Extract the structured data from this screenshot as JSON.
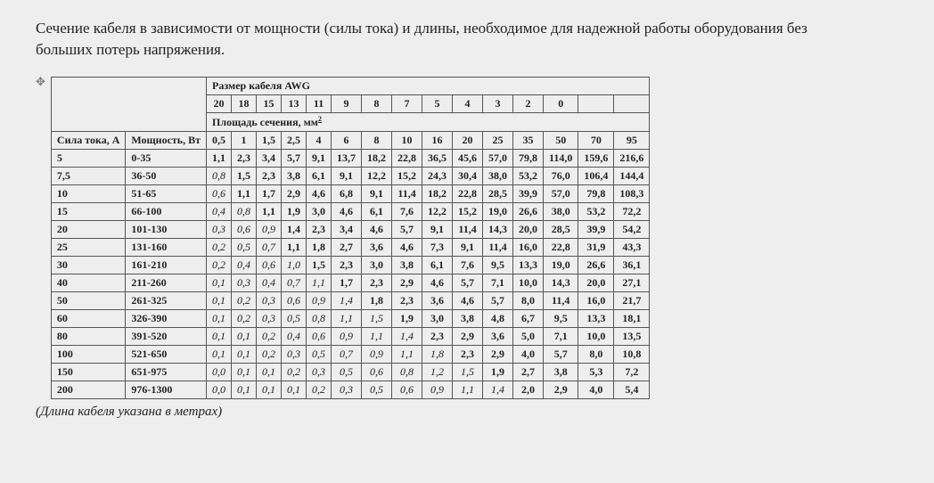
{
  "title": "Сечение кабеля в зависимости от мощности (силы тока) и длины, необходимое для надежной работы оборудования без больших потерь напряжения.",
  "table": {
    "header_awg_label": "Размер кабеля  AWG",
    "header_mm2_label": "Площадь сечения, мм",
    "header_mm2_sup": "2",
    "corner_current": "Сила тока, А",
    "corner_power": "Мощность, Вт",
    "awg_values": [
      "20",
      "18",
      "15",
      "13",
      "11",
      "9",
      "8",
      "7",
      "5",
      "4",
      "3",
      "2",
      "0",
      "",
      ""
    ],
    "mm2_values": [
      "0,5",
      "1",
      "1,5",
      "2,5",
      "4",
      "6",
      "8",
      "10",
      "16",
      "20",
      "25",
      "35",
      "50",
      "70",
      "95"
    ],
    "rows": [
      {
        "current": "5",
        "power": "0-35",
        "cells": [
          {
            "v": "1,1",
            "s": "b"
          },
          {
            "v": "2,3",
            "s": "b"
          },
          {
            "v": "3,4",
            "s": "b"
          },
          {
            "v": "5,7",
            "s": "b"
          },
          {
            "v": "9,1",
            "s": "b"
          },
          {
            "v": "13,7",
            "s": "b"
          },
          {
            "v": "18,2",
            "s": "b"
          },
          {
            "v": "22,8",
            "s": "b"
          },
          {
            "v": "36,5",
            "s": "b"
          },
          {
            "v": "45,6",
            "s": "b"
          },
          {
            "v": "57,0",
            "s": "b"
          },
          {
            "v": "79,8",
            "s": "b"
          },
          {
            "v": "114,0",
            "s": "b"
          },
          {
            "v": "159,6",
            "s": "b"
          },
          {
            "v": "216,6",
            "s": "b"
          }
        ]
      },
      {
        "current": "7,5",
        "power": "36-50",
        "cells": [
          {
            "v": "0,8",
            "s": "i"
          },
          {
            "v": "1,5",
            "s": "b"
          },
          {
            "v": "2,3",
            "s": "b"
          },
          {
            "v": "3,8",
            "s": "b"
          },
          {
            "v": "6,1",
            "s": "b"
          },
          {
            "v": "9,1",
            "s": "b"
          },
          {
            "v": "12,2",
            "s": "b"
          },
          {
            "v": "15,2",
            "s": "b"
          },
          {
            "v": "24,3",
            "s": "b"
          },
          {
            "v": "30,4",
            "s": "b"
          },
          {
            "v": "38,0",
            "s": "b"
          },
          {
            "v": "53,2",
            "s": "b"
          },
          {
            "v": "76,0",
            "s": "b"
          },
          {
            "v": "106,4",
            "s": "b"
          },
          {
            "v": "144,4",
            "s": "b"
          }
        ]
      },
      {
        "current": "10",
        "power": "51-65",
        "cells": [
          {
            "v": "0,6",
            "s": "i"
          },
          {
            "v": "1,1",
            "s": "b"
          },
          {
            "v": "1,7",
            "s": "b"
          },
          {
            "v": "2,9",
            "s": "b"
          },
          {
            "v": "4,6",
            "s": "b"
          },
          {
            "v": "6,8",
            "s": "b"
          },
          {
            "v": "9,1",
            "s": "b"
          },
          {
            "v": "11,4",
            "s": "b"
          },
          {
            "v": "18,2",
            "s": "b"
          },
          {
            "v": "22,8",
            "s": "b"
          },
          {
            "v": "28,5",
            "s": "b"
          },
          {
            "v": "39,9",
            "s": "b"
          },
          {
            "v": "57,0",
            "s": "b"
          },
          {
            "v": "79,8",
            "s": "b"
          },
          {
            "v": "108,3",
            "s": "b"
          }
        ]
      },
      {
        "current": "15",
        "power": "66-100",
        "cells": [
          {
            "v": "0,4",
            "s": "i"
          },
          {
            "v": "0,8",
            "s": "i"
          },
          {
            "v": "1,1",
            "s": "b"
          },
          {
            "v": "1,9",
            "s": "b"
          },
          {
            "v": "3,0",
            "s": "b"
          },
          {
            "v": "4,6",
            "s": "b"
          },
          {
            "v": "6,1",
            "s": "b"
          },
          {
            "v": "7,6",
            "s": "b"
          },
          {
            "v": "12,2",
            "s": "b"
          },
          {
            "v": "15,2",
            "s": "b"
          },
          {
            "v": "19,0",
            "s": "b"
          },
          {
            "v": "26,6",
            "s": "b"
          },
          {
            "v": "38,0",
            "s": "b"
          },
          {
            "v": "53,2",
            "s": "b"
          },
          {
            "v": "72,2",
            "s": "b"
          }
        ]
      },
      {
        "current": "20",
        "power": "101-130",
        "cells": [
          {
            "v": "0,3",
            "s": "i"
          },
          {
            "v": "0,6",
            "s": "i"
          },
          {
            "v": "0,9",
            "s": "i"
          },
          {
            "v": "1,4",
            "s": "b"
          },
          {
            "v": "2,3",
            "s": "b"
          },
          {
            "v": "3,4",
            "s": "b"
          },
          {
            "v": "4,6",
            "s": "b"
          },
          {
            "v": "5,7",
            "s": "b"
          },
          {
            "v": "9,1",
            "s": "b"
          },
          {
            "v": "11,4",
            "s": "b"
          },
          {
            "v": "14,3",
            "s": "b"
          },
          {
            "v": "20,0",
            "s": "b"
          },
          {
            "v": "28,5",
            "s": "b"
          },
          {
            "v": "39,9",
            "s": "b"
          },
          {
            "v": "54,2",
            "s": "b"
          }
        ]
      },
      {
        "current": "25",
        "power": "131-160",
        "cells": [
          {
            "v": "0,2",
            "s": "i"
          },
          {
            "v": "0,5",
            "s": "i"
          },
          {
            "v": "0,7",
            "s": "i"
          },
          {
            "v": "1,1",
            "s": "b"
          },
          {
            "v": "1,8",
            "s": "b"
          },
          {
            "v": "2,7",
            "s": "b"
          },
          {
            "v": "3,6",
            "s": "b"
          },
          {
            "v": "4,6",
            "s": "b"
          },
          {
            "v": "7,3",
            "s": "b"
          },
          {
            "v": "9,1",
            "s": "b"
          },
          {
            "v": "11,4",
            "s": "b"
          },
          {
            "v": "16,0",
            "s": "b"
          },
          {
            "v": "22,8",
            "s": "b"
          },
          {
            "v": "31,9",
            "s": "b"
          },
          {
            "v": "43,3",
            "s": "b"
          }
        ]
      },
      {
        "current": "30",
        "power": "161-210",
        "cells": [
          {
            "v": "0,2",
            "s": "i"
          },
          {
            "v": "0,4",
            "s": "i"
          },
          {
            "v": "0,6",
            "s": "i"
          },
          {
            "v": "1,0",
            "s": "i"
          },
          {
            "v": "1,5",
            "s": "b"
          },
          {
            "v": "2,3",
            "s": "b"
          },
          {
            "v": "3,0",
            "s": "b"
          },
          {
            "v": "3,8",
            "s": "b"
          },
          {
            "v": "6,1",
            "s": "b"
          },
          {
            "v": "7,6",
            "s": "b"
          },
          {
            "v": "9,5",
            "s": "b"
          },
          {
            "v": "13,3",
            "s": "b"
          },
          {
            "v": "19,0",
            "s": "b"
          },
          {
            "v": "26,6",
            "s": "b"
          },
          {
            "v": "36,1",
            "s": "b"
          }
        ]
      },
      {
        "current": "40",
        "power": "211-260",
        "cells": [
          {
            "v": "0,1",
            "s": "i"
          },
          {
            "v": "0,3",
            "s": "i"
          },
          {
            "v": "0,4",
            "s": "i"
          },
          {
            "v": "0,7",
            "s": "i"
          },
          {
            "v": "1,1",
            "s": "i"
          },
          {
            "v": "1,7",
            "s": "b"
          },
          {
            "v": "2,3",
            "s": "b"
          },
          {
            "v": "2,9",
            "s": "b"
          },
          {
            "v": "4,6",
            "s": "b"
          },
          {
            "v": "5,7",
            "s": "b"
          },
          {
            "v": "7,1",
            "s": "b"
          },
          {
            "v": "10,0",
            "s": "b"
          },
          {
            "v": "14,3",
            "s": "b"
          },
          {
            "v": "20,0",
            "s": "b"
          },
          {
            "v": "27,1",
            "s": "b"
          }
        ]
      },
      {
        "current": "50",
        "power": "261-325",
        "cells": [
          {
            "v": "0,1",
            "s": "i"
          },
          {
            "v": "0,2",
            "s": "i"
          },
          {
            "v": "0,3",
            "s": "i"
          },
          {
            "v": "0,6",
            "s": "i"
          },
          {
            "v": "0,9",
            "s": "i"
          },
          {
            "v": "1,4",
            "s": "i"
          },
          {
            "v": "1,8",
            "s": "b"
          },
          {
            "v": "2,3",
            "s": "b"
          },
          {
            "v": "3,6",
            "s": "b"
          },
          {
            "v": "4,6",
            "s": "b"
          },
          {
            "v": "5,7",
            "s": "b"
          },
          {
            "v": "8,0",
            "s": "b"
          },
          {
            "v": "11,4",
            "s": "b"
          },
          {
            "v": "16,0",
            "s": "b"
          },
          {
            "v": "21,7",
            "s": "b"
          }
        ]
      },
      {
        "current": "60",
        "power": "326-390",
        "cells": [
          {
            "v": "0,1",
            "s": "i"
          },
          {
            "v": "0,2",
            "s": "i"
          },
          {
            "v": "0,3",
            "s": "i"
          },
          {
            "v": "0,5",
            "s": "i"
          },
          {
            "v": "0,8",
            "s": "i"
          },
          {
            "v": "1,1",
            "s": "i"
          },
          {
            "v": "1,5",
            "s": "i"
          },
          {
            "v": "1,9",
            "s": "b"
          },
          {
            "v": "3,0",
            "s": "b"
          },
          {
            "v": "3,8",
            "s": "b"
          },
          {
            "v": "4,8",
            "s": "b"
          },
          {
            "v": "6,7",
            "s": "b"
          },
          {
            "v": "9,5",
            "s": "b"
          },
          {
            "v": "13,3",
            "s": "b"
          },
          {
            "v": "18,1",
            "s": "b"
          }
        ]
      },
      {
        "current": "80",
        "power": "391-520",
        "cells": [
          {
            "v": "0,1",
            "s": "i"
          },
          {
            "v": "0,1",
            "s": "i"
          },
          {
            "v": "0,2",
            "s": "i"
          },
          {
            "v": "0,4",
            "s": "i"
          },
          {
            "v": "0,6",
            "s": "i"
          },
          {
            "v": "0,9",
            "s": "i"
          },
          {
            "v": "1,1",
            "s": "i"
          },
          {
            "v": "1,4",
            "s": "i"
          },
          {
            "v": "2,3",
            "s": "b"
          },
          {
            "v": "2,9",
            "s": "b"
          },
          {
            "v": "3,6",
            "s": "b"
          },
          {
            "v": "5,0",
            "s": "b"
          },
          {
            "v": "7,1",
            "s": "b"
          },
          {
            "v": "10,0",
            "s": "b"
          },
          {
            "v": "13,5",
            "s": "b"
          }
        ]
      },
      {
        "current": "100",
        "power": "521-650",
        "cells": [
          {
            "v": "0,1",
            "s": "i"
          },
          {
            "v": "0,1",
            "s": "i"
          },
          {
            "v": "0,2",
            "s": "i"
          },
          {
            "v": "0,3",
            "s": "i"
          },
          {
            "v": "0,5",
            "s": "i"
          },
          {
            "v": "0,7",
            "s": "i"
          },
          {
            "v": "0,9",
            "s": "i"
          },
          {
            "v": "1,1",
            "s": "i"
          },
          {
            "v": "1,8",
            "s": "i"
          },
          {
            "v": "2,3",
            "s": "b"
          },
          {
            "v": "2,9",
            "s": "b"
          },
          {
            "v": "4,0",
            "s": "b"
          },
          {
            "v": "5,7",
            "s": "b"
          },
          {
            "v": "8,0",
            "s": "b"
          },
          {
            "v": "10,8",
            "s": "b"
          }
        ]
      },
      {
        "current": "150",
        "power": "651-975",
        "cells": [
          {
            "v": "0,0",
            "s": "i"
          },
          {
            "v": "0,1",
            "s": "i"
          },
          {
            "v": "0,1",
            "s": "i"
          },
          {
            "v": "0,2",
            "s": "i"
          },
          {
            "v": "0,3",
            "s": "i"
          },
          {
            "v": "0,5",
            "s": "i"
          },
          {
            "v": "0,6",
            "s": "i"
          },
          {
            "v": "0,8",
            "s": "i"
          },
          {
            "v": "1,2",
            "s": "i"
          },
          {
            "v": "1,5",
            "s": "i"
          },
          {
            "v": "1,9",
            "s": "b"
          },
          {
            "v": "2,7",
            "s": "b"
          },
          {
            "v": "3,8",
            "s": "b"
          },
          {
            "v": "5,3",
            "s": "b"
          },
          {
            "v": "7,2",
            "s": "b"
          }
        ]
      },
      {
        "current": "200",
        "power": "976-1300",
        "cells": [
          {
            "v": "0,0",
            "s": "i"
          },
          {
            "v": "0,1",
            "s": "i"
          },
          {
            "v": "0,1",
            "s": "i"
          },
          {
            "v": "0,1",
            "s": "i"
          },
          {
            "v": "0,2",
            "s": "i"
          },
          {
            "v": "0,3",
            "s": "i"
          },
          {
            "v": "0,5",
            "s": "i"
          },
          {
            "v": "0,6",
            "s": "i"
          },
          {
            "v": "0,9",
            "s": "i"
          },
          {
            "v": "1,1",
            "s": "i"
          },
          {
            "v": "1,4",
            "s": "i"
          },
          {
            "v": "2,0",
            "s": "b"
          },
          {
            "v": "2,9",
            "s": "b"
          },
          {
            "v": "4,0",
            "s": "b"
          },
          {
            "v": "5,4",
            "s": "b"
          }
        ]
      }
    ]
  },
  "footnote": "(Длина кабеля указана в метрах)"
}
